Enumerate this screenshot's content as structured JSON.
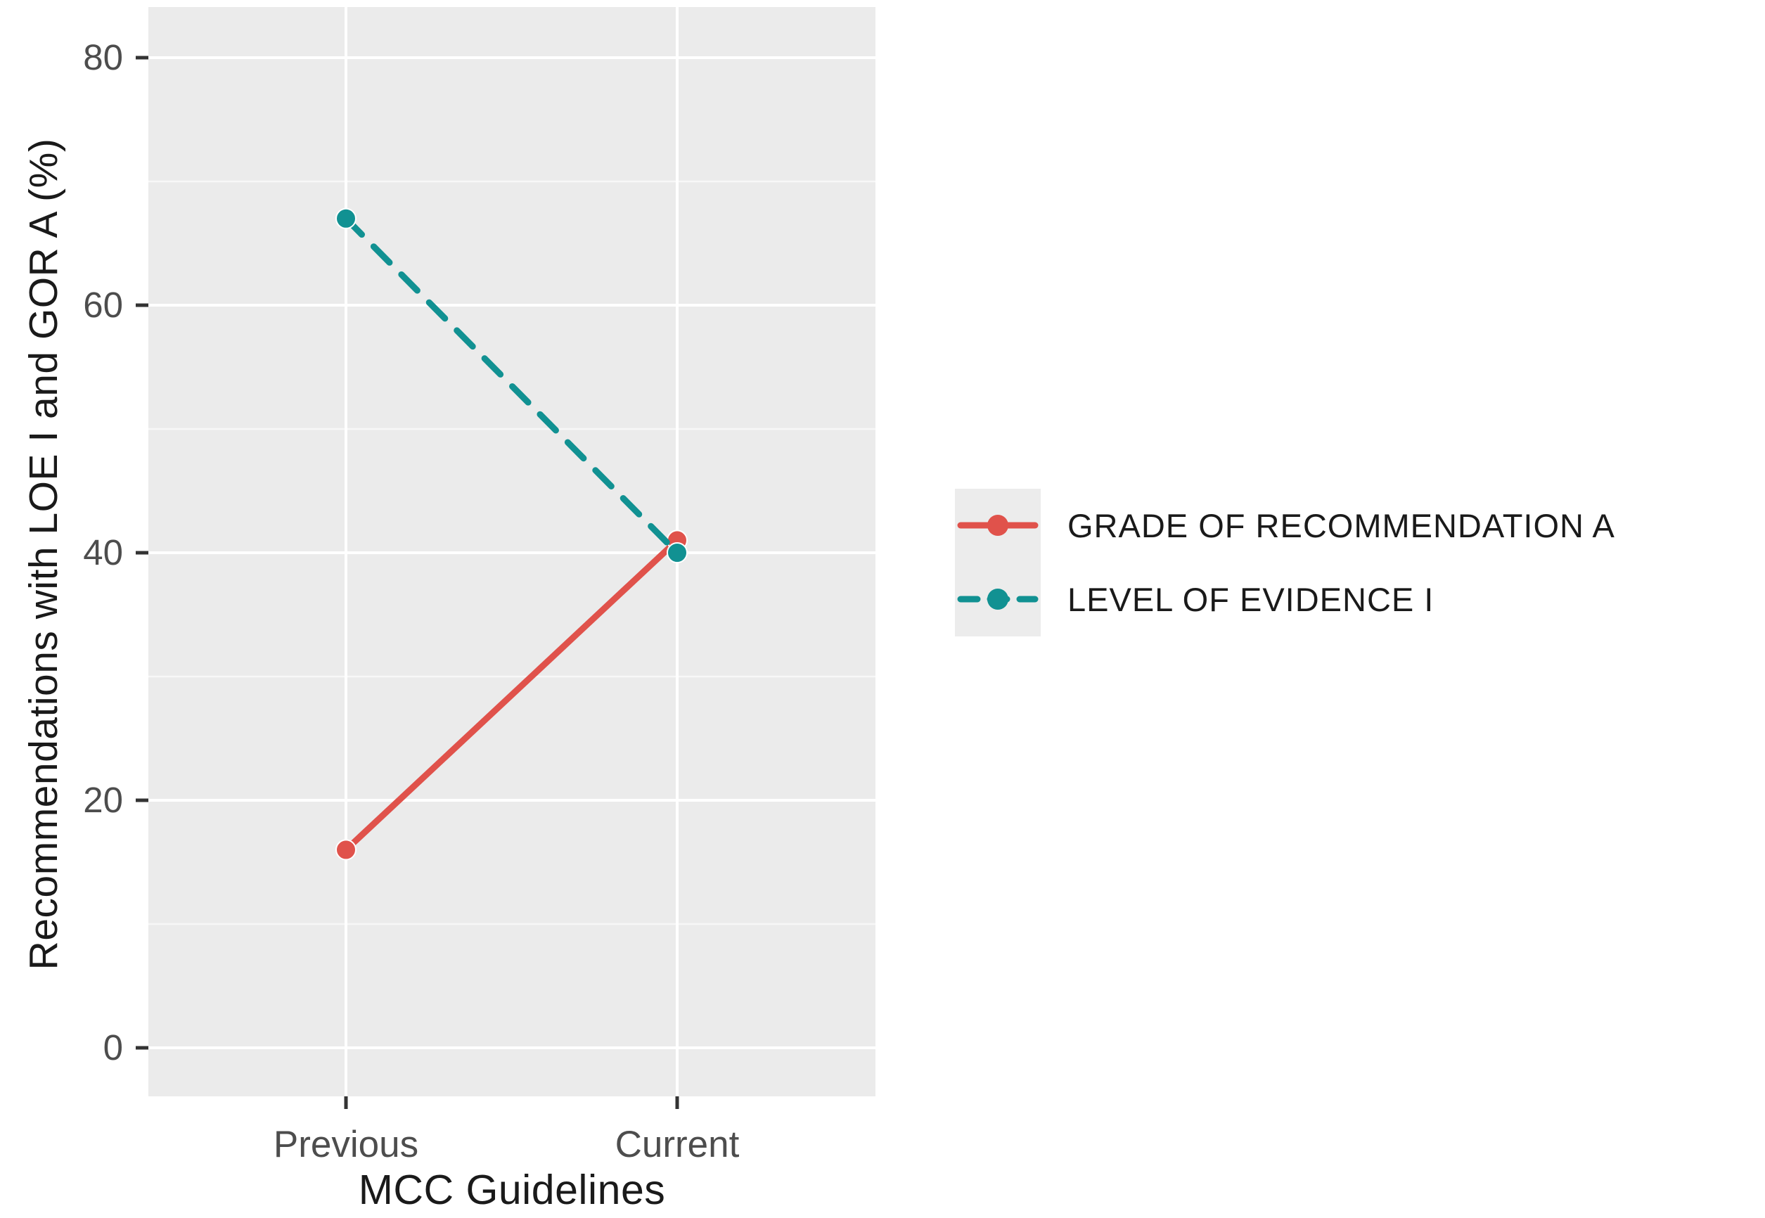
{
  "chart_data": {
    "type": "line",
    "title": "",
    "xlabel": "MCC Guidelines",
    "ylabel": "Recommendations with LOE I and GOR A (%)",
    "categories": [
      "Previous",
      "Current"
    ],
    "series": [
      {
        "name": "GRADE OF RECOMMENDATION A",
        "values": [
          16,
          41
        ],
        "color": "#e0524b",
        "line_style": "solid"
      },
      {
        "name": "LEVEL OF EVIDENCE I",
        "values": [
          67,
          40
        ],
        "color": "#119192",
        "line_style": "dashed"
      }
    ],
    "y_ticks": [
      0,
      20,
      40,
      60,
      80
    ],
    "y_minor_ticks": [
      10,
      30,
      50,
      70
    ],
    "ylim": [
      0,
      80
    ],
    "grid": "major-and-minor",
    "legend_position": "right",
    "colors": {
      "panel_background": "#ebebeb",
      "gridline": "#ffffff",
      "tick_mark": "#333333",
      "tick_label": "#4d4d4d",
      "axis_title": "#1a1a1a",
      "legend_key_background": "#ececec"
    }
  }
}
